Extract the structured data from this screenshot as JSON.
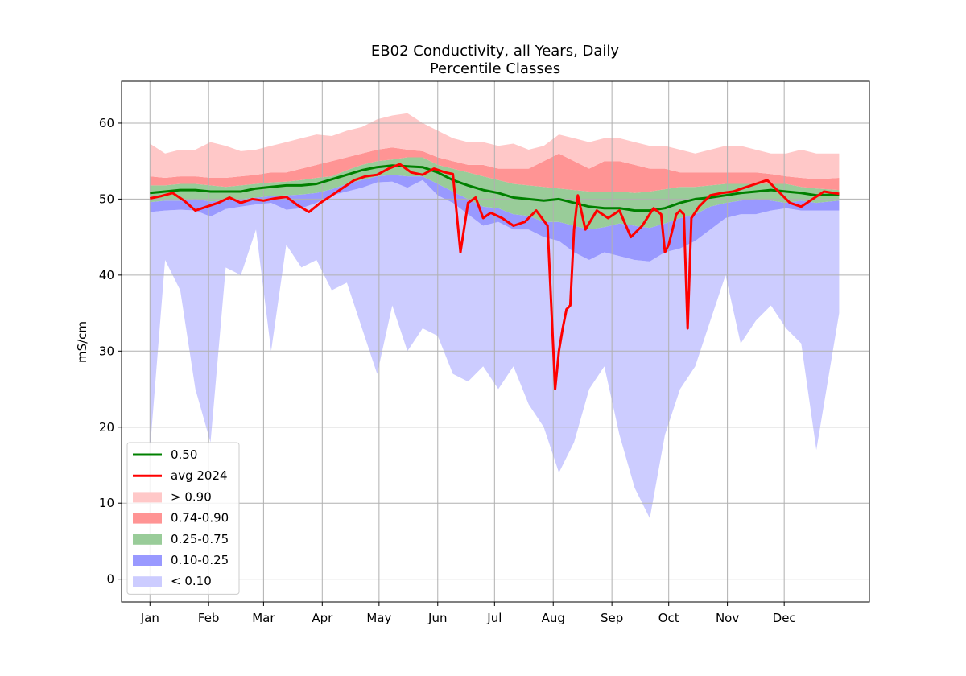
{
  "chart_data": {
    "type": "area",
    "title": "EB02 Conductivity, all Years, Daily",
    "subtitle": "Percentile Classes",
    "xlabel": "",
    "ylabel": "mS/cm",
    "x_unit": "day of year",
    "xlim": [
      -15,
      380
    ],
    "ylim": [
      -3,
      65.5
    ],
    "grid": true,
    "legend_position": "lower-left",
    "x_ticks": [
      {
        "label": "Jan",
        "day": 0
      },
      {
        "label": "Feb",
        "day": 31
      },
      {
        "label": "Mar",
        "day": 60
      },
      {
        "label": "Apr",
        "day": 91
      },
      {
        "label": "May",
        "day": 121
      },
      {
        "label": "Jun",
        "day": 152
      },
      {
        "label": "Jul",
        "day": 182
      },
      {
        "label": "Aug",
        "day": 213
      },
      {
        "label": "Sep",
        "day": 244
      },
      {
        "label": "Oct",
        "day": 274
      },
      {
        "label": "Nov",
        "day": 305
      },
      {
        "label": "Dec",
        "day": 335
      }
    ],
    "y_ticks": [
      0,
      10,
      20,
      30,
      40,
      50,
      60
    ],
    "colors": {
      "p50": "#008000",
      "avg": "#ff0000",
      "gt90": "#ffc8c8",
      "p74_90": "#ff9494",
      "p25_75": "#99cc99",
      "p10_25": "#9999ff",
      "lt10": "#ccccff"
    },
    "legend": [
      {
        "key": "p50",
        "label": "0.50",
        "kind": "line"
      },
      {
        "key": "avg",
        "label": "avg 2024",
        "kind": "line"
      },
      {
        "key": "gt90",
        "label": "> 0.90",
        "kind": "patch"
      },
      {
        "key": "p74_90",
        "label": "0.74-0.90",
        "kind": "patch"
      },
      {
        "key": "p25_75",
        "label": "0.25-0.75",
        "kind": "patch"
      },
      {
        "key": "p10_25",
        "label": "0.10-0.25",
        "kind": "patch"
      },
      {
        "key": "lt10",
        "label": "< 0.10",
        "kind": "patch"
      }
    ],
    "x": [
      0,
      8,
      16,
      24,
      32,
      40,
      48,
      56,
      64,
      72,
      80,
      88,
      96,
      104,
      112,
      120,
      128,
      136,
      144,
      152,
      160,
      168,
      176,
      184,
      192,
      200,
      208,
      216,
      224,
      232,
      240,
      248,
      256,
      264,
      272,
      280,
      288,
      296,
      304,
      312,
      320,
      328,
      336,
      344,
      352,
      364
    ],
    "series": [
      {
        "key": "min",
        "values": [
          17,
          42,
          38,
          25,
          18,
          41,
          40,
          46,
          30,
          44,
          41,
          42,
          38,
          39,
          33,
          27,
          36,
          30,
          33,
          32,
          27,
          26,
          28,
          25,
          28,
          23,
          20,
          14,
          18,
          25,
          28,
          19,
          12,
          8,
          19,
          25,
          28,
          34,
          40,
          31,
          34,
          36,
          33,
          31,
          17,
          35
        ]
      },
      {
        "key": "p10",
        "values": [
          48.3,
          48.5,
          48.6,
          48.5,
          47.7,
          48.7,
          49.0,
          49.3,
          49.5,
          48.6,
          48.8,
          49.5,
          50.5,
          51.0,
          51.5,
          52.2,
          52.3,
          51.5,
          52.5,
          50.5,
          49.5,
          48.0,
          46.5,
          47.0,
          46.0,
          46.0,
          45.0,
          44.5,
          43.0,
          42.0,
          43.0,
          42.5,
          42.0,
          41.8,
          43.0,
          43.5,
          44.5,
          46.0,
          47.5,
          48.0,
          48.0,
          48.5,
          48.8,
          48.5,
          48.5,
          48.5
        ]
      },
      {
        "key": "p25",
        "values": [
          49.6,
          49.8,
          49.8,
          50.0,
          49.7,
          49.8,
          50.0,
          50.2,
          50.4,
          50.5,
          50.6,
          50.8,
          51.3,
          52.0,
          52.5,
          53.0,
          53.2,
          53.0,
          53.0,
          52.0,
          51.0,
          50.0,
          49.0,
          48.8,
          48.0,
          47.8,
          47.0,
          47.0,
          46.5,
          46.0,
          46.3,
          46.8,
          46.5,
          46.2,
          46.8,
          47.5,
          48.0,
          49.0,
          49.5,
          49.8,
          50.0,
          49.8,
          49.5,
          49.8,
          49.5,
          49.8
        ]
      },
      {
        "key": "p75",
        "values": [
          51.8,
          51.8,
          52.0,
          52.0,
          51.8,
          51.6,
          51.8,
          52.0,
          52.2,
          52.3,
          52.5,
          52.8,
          53.0,
          53.8,
          54.5,
          55.0,
          55.2,
          55.5,
          55.5,
          54.5,
          54.0,
          53.5,
          53.0,
          52.5,
          52.0,
          51.8,
          51.6,
          51.4,
          51.2,
          51.0,
          51.0,
          51.0,
          50.8,
          51.0,
          51.3,
          51.6,
          51.6,
          51.8,
          52.0,
          52.0,
          52.0,
          52.0,
          52.0,
          51.6,
          51.4,
          51.2
        ]
      },
      {
        "key": "p90",
        "values": [
          53.0,
          52.8,
          53.0,
          53.0,
          52.8,
          52.8,
          53.0,
          53.2,
          53.5,
          53.5,
          54.0,
          54.5,
          55.0,
          55.5,
          56.0,
          56.5,
          56.8,
          56.5,
          56.3,
          55.5,
          55.0,
          54.5,
          54.5,
          54.0,
          54.0,
          54.0,
          55.0,
          56.0,
          55.0,
          54.0,
          55.0,
          55.0,
          54.5,
          54.0,
          54.0,
          53.5,
          53.5,
          53.5,
          53.5,
          53.5,
          53.5,
          53.3,
          53.0,
          52.8,
          52.6,
          52.8
        ]
      },
      {
        "key": "max",
        "values": [
          57.3,
          56.0,
          56.5,
          56.5,
          57.5,
          57.0,
          56.3,
          56.5,
          57.0,
          57.5,
          58.0,
          58.5,
          58.3,
          59.0,
          59.5,
          60.5,
          61.0,
          61.3,
          60.0,
          59.0,
          58.0,
          57.5,
          57.5,
          57.0,
          57.3,
          56.5,
          57.0,
          58.5,
          58.0,
          57.5,
          58.0,
          58.0,
          57.5,
          57.0,
          57.0,
          56.5,
          56.0,
          56.5,
          57.0,
          57.0,
          56.5,
          56.0,
          56.0,
          56.5,
          56.0,
          56.0
        ]
      },
      {
        "key": "p50",
        "name": "0.50",
        "values": [
          50.8,
          51.0,
          51.2,
          51.2,
          51.0,
          51.0,
          51.0,
          51.4,
          51.6,
          51.8,
          51.8,
          52.0,
          52.6,
          53.2,
          53.8,
          54.2,
          54.4,
          54.3,
          54.2,
          53.5,
          52.5,
          51.8,
          51.2,
          50.8,
          50.2,
          50.0,
          49.8,
          50.0,
          49.5,
          49.0,
          48.8,
          48.8,
          48.5,
          48.5,
          48.8,
          49.5,
          50.0,
          50.2,
          50.5,
          50.8,
          51.0,
          51.2,
          51.0,
          50.8,
          50.5,
          50.6
        ]
      }
    ],
    "avg_2024": {
      "name": "avg 2024",
      "x": [
        0,
        6,
        12,
        18,
        24,
        30,
        36,
        42,
        48,
        54,
        60,
        66,
        72,
        78,
        84,
        90,
        96,
        102,
        108,
        114,
        120,
        126,
        132,
        138,
        144,
        150,
        156,
        160,
        164,
        168,
        172,
        176,
        180,
        186,
        192,
        198,
        204,
        210,
        214,
        216,
        218,
        220,
        222,
        224,
        226,
        230,
        236,
        242,
        248,
        254,
        260,
        266,
        270,
        272,
        274,
        278,
        280,
        282,
        284,
        286,
        290,
        296,
        302,
        308,
        314,
        320,
        326,
        332,
        338,
        344,
        350,
        356,
        364
      ],
      "values": [
        50.1,
        50.4,
        50.8,
        49.8,
        48.5,
        49.0,
        49.5,
        50.2,
        49.5,
        50.0,
        49.8,
        50.1,
        50.3,
        49.2,
        48.3,
        49.5,
        50.5,
        51.5,
        52.5,
        53.0,
        53.2,
        54.0,
        54.6,
        53.5,
        53.2,
        54.0,
        53.5,
        53.3,
        43.0,
        49.5,
        50.2,
        47.5,
        48.2,
        47.5,
        46.5,
        47.0,
        48.5,
        46.5,
        25.0,
        30.0,
        33.0,
        35.5,
        36.0,
        46.0,
        50.5,
        46.0,
        48.5,
        47.5,
        48.5,
        45.0,
        46.5,
        48.8,
        48.0,
        43.0,
        44.0,
        48.0,
        48.5,
        48.0,
        33.0,
        47.5,
        49.0,
        50.5,
        50.8,
        51.0,
        51.5,
        52.0,
        52.5,
        51.0,
        49.5,
        49.0,
        50.0,
        51.0,
        50.7
      ]
    }
  }
}
